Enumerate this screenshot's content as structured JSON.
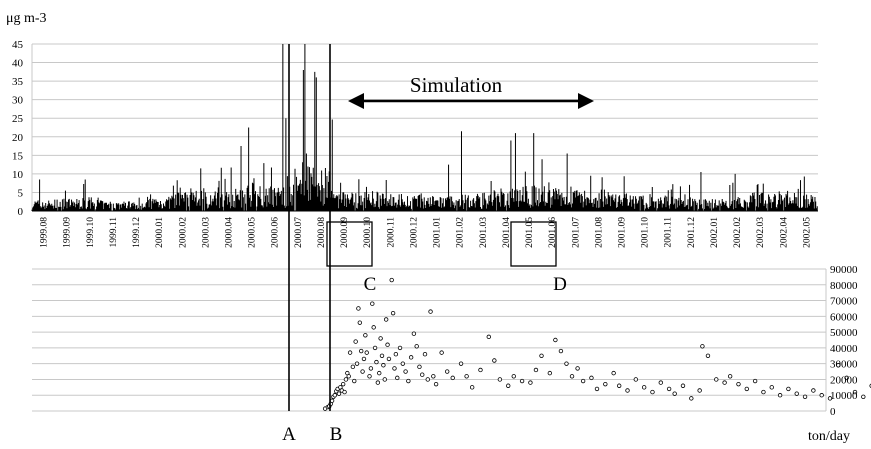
{
  "colors": {
    "ink": "#000000",
    "grid": "#c8c8c8",
    "background": "#ffffff"
  },
  "top_panel": {
    "unit_label": "μg m-3",
    "annotation": "Simulation",
    "markers": [
      {
        "label": "A",
        "date": "2000.07"
      },
      {
        "label": "B",
        "date": "2000.08"
      }
    ],
    "boxes": [
      {
        "label": "C",
        "period": "2000.09"
      },
      {
        "label": "D",
        "period": "2001.05-2001.06"
      }
    ]
  },
  "bottom_panel": {
    "unit_label": "ton/day"
  },
  "chart_data": [
    {
      "type": "bar",
      "description_of_series": "daily concentration, narrow bars per day",
      "x_categories": [
        "1999.08",
        "1999.09",
        "1999.10",
        "1999.11",
        "1999.12",
        "2000.01",
        "2000.02",
        "2000.03",
        "2000.04",
        "2000.05",
        "2000.06",
        "2000.07",
        "2000.08",
        "2000.09",
        "2000.10",
        "2000.11",
        "2000.12",
        "2001.01",
        "2001.02",
        "2001.03",
        "2001.04",
        "2001.05",
        "2001.06",
        "2001.07",
        "2001.08",
        "2001.09",
        "2001.10",
        "2001.11",
        "2001.12",
        "2002.01",
        "2002.02",
        "2002.03",
        "2002.04",
        "2002.05"
      ],
      "y_ticks": [
        0,
        5,
        10,
        15,
        20,
        25,
        30,
        35,
        40,
        45
      ],
      "ylim": [
        0,
        45
      ],
      "grid": true,
      "monthly_typical": [
        1.8,
        2.0,
        2.2,
        1.6,
        1.7,
        2.3,
        3.0,
        3.2,
        3.6,
        4.6,
        4.2,
        5.6,
        7.0,
        3.2,
        3.2,
        2.8,
        2.6,
        2.4,
        2.6,
        3.0,
        3.6,
        4.0,
        3.8,
        4.2,
        3.4,
        2.8,
        2.7,
        2.5,
        2.2,
        2.0,
        2.2,
        3.0,
        3.4,
        2.8
      ],
      "spikes": [
        {
          "day": 10,
          "value": 8.5
        },
        {
          "day": 70,
          "value": 8.5
        },
        {
          "day": 222,
          "value": 11.5
        },
        {
          "day": 275,
          "value": 17.5
        },
        {
          "day": 285,
          "value": 22.5
        },
        {
          "day": 330,
          "value": 45
        },
        {
          "day": 334,
          "value": 25
        },
        {
          "day": 357,
          "value": 38
        },
        {
          "day": 359,
          "value": 45
        },
        {
          "day": 363,
          "value": 12
        },
        {
          "day": 372,
          "value": 37.5
        },
        {
          "day": 374,
          "value": 36
        },
        {
          "day": 392,
          "value": 13
        },
        {
          "day": 425,
          "value": 17.5
        },
        {
          "day": 548,
          "value": 12.5
        },
        {
          "day": 565,
          "value": 21.5
        },
        {
          "day": 630,
          "value": 19
        },
        {
          "day": 636,
          "value": 21
        },
        {
          "day": 660,
          "value": 21
        },
        {
          "day": 704,
          "value": 15.5
        },
        {
          "day": 735,
          "value": 9.5
        },
        {
          "day": 880,
          "value": 10.5
        },
        {
          "day": 925,
          "value": 10
        },
        {
          "day": 954,
          "value": 7
        }
      ]
    },
    {
      "type": "scatter",
      "y_ticks": [
        0,
        10000,
        20000,
        30000,
        40000,
        50000,
        60000,
        70000,
        80000,
        90000
      ],
      "ylim": [
        0,
        90000
      ],
      "grid": true,
      "x_range_months": [
        "2000.08",
        "2002.05"
      ],
      "points": [
        [
          2000.64,
          1500
        ],
        [
          2000.65,
          2500
        ],
        [
          2000.655,
          3000
        ],
        [
          2000.66,
          4500
        ],
        [
          2000.665,
          6500
        ],
        [
          2000.67,
          9000
        ],
        [
          2000.675,
          10000
        ],
        [
          2000.68,
          12500
        ],
        [
          2000.685,
          14000
        ],
        [
          2000.69,
          11000
        ],
        [
          2000.695,
          15000
        ],
        [
          2000.7,
          13000
        ],
        [
          2000.705,
          17000
        ],
        [
          2000.71,
          12000
        ],
        [
          2000.715,
          20000
        ],
        [
          2000.72,
          24000
        ],
        [
          2000.725,
          22000
        ],
        [
          2000.73,
          37000
        ],
        [
          2000.74,
          28000
        ],
        [
          2000.745,
          19000
        ],
        [
          2000.75,
          44000
        ],
        [
          2000.755,
          30000
        ],
        [
          2000.76,
          65000
        ],
        [
          2000.765,
          56000
        ],
        [
          2000.77,
          38000
        ],
        [
          2000.775,
          25000
        ],
        [
          2000.78,
          33000
        ],
        [
          2000.785,
          48000
        ],
        [
          2000.79,
          37000
        ],
        [
          2000.8,
          22000
        ],
        [
          2000.805,
          27000
        ],
        [
          2000.81,
          68000
        ],
        [
          2000.815,
          53000
        ],
        [
          2000.82,
          40000
        ],
        [
          2000.825,
          31000
        ],
        [
          2000.83,
          18000
        ],
        [
          2000.835,
          24000
        ],
        [
          2000.84,
          46000
        ],
        [
          2000.845,
          35000
        ],
        [
          2000.85,
          29000
        ],
        [
          2000.855,
          20000
        ],
        [
          2000.86,
          58000
        ],
        [
          2000.865,
          42000
        ],
        [
          2000.87,
          33000
        ],
        [
          2000.88,
          83000
        ],
        [
          2000.885,
          62000
        ],
        [
          2000.89,
          27000
        ],
        [
          2000.895,
          36000
        ],
        [
          2000.9,
          21000
        ],
        [
          2000.91,
          40000
        ],
        [
          2000.92,
          30000
        ],
        [
          2000.93,
          25000
        ],
        [
          2000.94,
          19000
        ],
        [
          2000.95,
          34000
        ],
        [
          2000.96,
          49000
        ],
        [
          2000.97,
          41000
        ],
        [
          2000.98,
          28000
        ],
        [
          2000.99,
          23000
        ],
        [
          2001.0,
          36000
        ],
        [
          2001.01,
          20000
        ],
        [
          2001.02,
          63000
        ],
        [
          2001.03,
          22000
        ],
        [
          2001.04,
          17000
        ],
        [
          2001.06,
          37000
        ],
        [
          2001.08,
          25000
        ],
        [
          2001.1,
          21000
        ],
        [
          2001.13,
          30000
        ],
        [
          2001.15,
          22000
        ],
        [
          2001.17,
          15000
        ],
        [
          2001.2,
          26000
        ],
        [
          2001.23,
          47000
        ],
        [
          2001.25,
          32000
        ],
        [
          2001.27,
          20000
        ],
        [
          2001.3,
          16000
        ],
        [
          2001.32,
          22000
        ],
        [
          2001.35,
          19000
        ],
        [
          2001.38,
          18000
        ],
        [
          2001.4,
          26000
        ],
        [
          2001.42,
          35000
        ],
        [
          2001.45,
          24000
        ],
        [
          2001.47,
          45000
        ],
        [
          2001.49,
          38000
        ],
        [
          2001.51,
          30000
        ],
        [
          2001.53,
          22000
        ],
        [
          2001.55,
          27000
        ],
        [
          2001.57,
          19000
        ],
        [
          2001.6,
          21000
        ],
        [
          2001.62,
          14000
        ],
        [
          2001.65,
          17000
        ],
        [
          2001.68,
          24000
        ],
        [
          2001.7,
          16000
        ],
        [
          2001.73,
          13000
        ],
        [
          2001.76,
          20000
        ],
        [
          2001.79,
          15000
        ],
        [
          2001.82,
          12000
        ],
        [
          2001.85,
          18000
        ],
        [
          2001.88,
          14000
        ],
        [
          2001.9,
          11000
        ],
        [
          2001.93,
          16000
        ],
        [
          2001.96,
          8000
        ],
        [
          2001.99,
          13000
        ],
        [
          2002.0,
          41000
        ],
        [
          2002.02,
          35000
        ],
        [
          2002.05,
          20000
        ],
        [
          2002.08,
          18000
        ],
        [
          2002.1,
          22000
        ],
        [
          2002.13,
          17000
        ],
        [
          2002.16,
          14000
        ],
        [
          2002.19,
          19000
        ],
        [
          2002.22,
          12000
        ],
        [
          2002.25,
          15000
        ],
        [
          2002.28,
          10000
        ],
        [
          2002.31,
          14000
        ],
        [
          2002.34,
          11000
        ],
        [
          2002.37,
          9000
        ],
        [
          2002.4,
          13000
        ],
        [
          2002.43,
          10000
        ],
        [
          2002.46,
          8000
        ],
        [
          2002.49,
          29000
        ],
        [
          2002.52,
          21000
        ],
        [
          2002.55,
          12000
        ],
        [
          2002.58,
          9000
        ],
        [
          2002.61,
          16000
        ],
        [
          2002.64,
          11000
        ],
        [
          2002.67,
          7000
        ],
        [
          2002.7,
          24000
        ],
        [
          2002.73,
          13000
        ],
        [
          2002.76,
          9000
        ],
        [
          2002.79,
          6000
        ],
        [
          2002.82,
          20000
        ],
        [
          2002.85,
          11000
        ],
        [
          2002.88,
          7000
        ]
      ]
    }
  ]
}
